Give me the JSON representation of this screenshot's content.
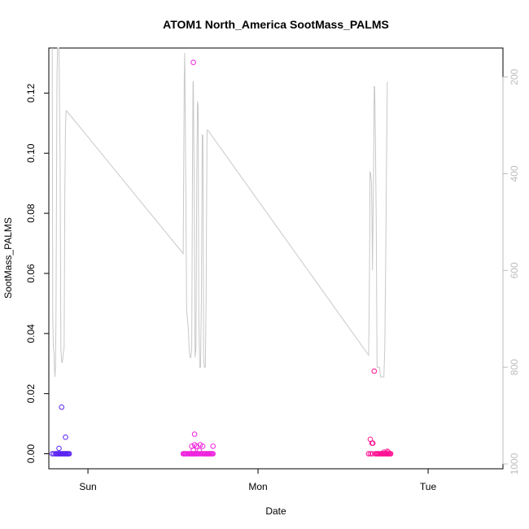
{
  "chart_data": {
    "type": "scatter",
    "title": "ATOM1 North_America SootMass_PALMS",
    "xlabel": "Date",
    "ylabel": "SootMass_PALMS",
    "xlim": [
      0.77,
      3.44
    ],
    "ylim": [
      -0.005,
      0.135
    ],
    "x_ticks": [
      {
        "value": 1,
        "label": "Sun"
      },
      {
        "value": 2,
        "label": "Mon"
      },
      {
        "value": 3,
        "label": "Tue"
      }
    ],
    "y_ticks": [
      0.0,
      0.02,
      0.04,
      0.06,
      0.08,
      0.1,
      0.12
    ],
    "y_tick_labels": [
      "0.00",
      "0.02",
      "0.04",
      "0.06",
      "0.08",
      "0.10",
      "0.12"
    ],
    "grid": false,
    "legend": "none",
    "secondary_axis": {
      "side": "right",
      "color": "#bdbdbd",
      "ylim": [
        1010,
        140
      ],
      "ticks": [
        200,
        400,
        600,
        800,
        1000
      ],
      "tick_labels": [
        "200",
        "400",
        "600",
        "800",
        "1000"
      ]
    },
    "scatter_series": [
      {
        "color": "#5b22f2",
        "points": [
          [
            0.8,
            0.0
          ],
          [
            0.81,
            0.0
          ],
          [
            0.815,
            0.0
          ],
          [
            0.82,
            0.0
          ],
          [
            0.825,
            0.0
          ],
          [
            0.83,
            0.0
          ],
          [
            0.835,
            0.0
          ],
          [
            0.84,
            0.0
          ],
          [
            0.845,
            0.0
          ],
          [
            0.85,
            0.0
          ],
          [
            0.855,
            0.0
          ],
          [
            0.86,
            0.0
          ],
          [
            0.865,
            0.0
          ],
          [
            0.87,
            0.0
          ],
          [
            0.875,
            0.0
          ],
          [
            0.88,
            0.0
          ],
          [
            0.885,
            0.0
          ],
          [
            0.89,
            0.0
          ],
          [
            0.79,
            0.0
          ],
          [
            0.83,
            0.0018
          ],
          [
            0.845,
            0.0155
          ],
          [
            0.868,
            0.0055
          ]
        ]
      },
      {
        "color": "#ee22dd",
        "points": [
          [
            1.56,
            0.0
          ],
          [
            1.565,
            0.0
          ],
          [
            1.57,
            0.0
          ],
          [
            1.575,
            0.0
          ],
          [
            1.58,
            0.0
          ],
          [
            1.59,
            0.0
          ],
          [
            1.595,
            0.0
          ],
          [
            1.6,
            0.0
          ],
          [
            1.605,
            0.0
          ],
          [
            1.61,
            0.0
          ],
          [
            1.615,
            0.0
          ],
          [
            1.62,
            0.0
          ],
          [
            1.625,
            0.0
          ],
          [
            1.63,
            0.0
          ],
          [
            1.635,
            0.0
          ],
          [
            1.64,
            0.0
          ],
          [
            1.645,
            0.0
          ],
          [
            1.65,
            0.0
          ],
          [
            1.66,
            0.0
          ],
          [
            1.67,
            0.0
          ],
          [
            1.675,
            0.0
          ],
          [
            1.68,
            0.0
          ],
          [
            1.685,
            0.0
          ],
          [
            1.69,
            0.0
          ],
          [
            1.695,
            0.0
          ],
          [
            1.7,
            0.0
          ],
          [
            1.705,
            0.0
          ],
          [
            1.71,
            0.0
          ],
          [
            1.715,
            0.0
          ],
          [
            1.72,
            0.0
          ],
          [
            1.725,
            0.0
          ],
          [
            1.73,
            0.0
          ],
          [
            1.735,
            0.0
          ],
          [
            1.61,
            0.0025
          ],
          [
            1.627,
            0.003
          ],
          [
            1.64,
            0.0025
          ],
          [
            1.66,
            0.003
          ],
          [
            1.675,
            0.0025
          ],
          [
            1.735,
            0.0025
          ],
          [
            1.62,
            0.0012
          ],
          [
            1.655,
            0.001
          ],
          [
            1.627,
            0.0065
          ],
          [
            1.62,
            0.1302
          ]
        ]
      },
      {
        "color": "#ff1493",
        "points": [
          [
            2.65,
            0.0
          ],
          [
            2.66,
            0.0
          ],
          [
            2.67,
            0.0
          ],
          [
            2.69,
            0.0
          ],
          [
            2.695,
            0.0
          ],
          [
            2.7,
            0.0
          ],
          [
            2.705,
            0.0
          ],
          [
            2.71,
            0.0
          ],
          [
            2.715,
            0.0
          ],
          [
            2.72,
            0.0
          ],
          [
            2.725,
            0.0
          ],
          [
            2.73,
            0.0
          ],
          [
            2.735,
            0.0
          ],
          [
            2.74,
            0.0
          ],
          [
            2.745,
            0.0
          ],
          [
            2.75,
            0.0
          ],
          [
            2.755,
            0.0
          ],
          [
            2.76,
            0.0
          ],
          [
            2.765,
            0.0
          ],
          [
            2.77,
            0.0
          ],
          [
            2.775,
            0.0
          ],
          [
            2.78,
            0.0
          ],
          [
            2.74,
            0.0005
          ],
          [
            2.76,
            0.0008
          ],
          [
            2.765,
            0.0005
          ],
          [
            2.66,
            0.0048
          ],
          [
            2.67,
            0.0035
          ],
          [
            2.675,
            0.0035
          ],
          [
            2.683,
            0.0275
          ]
        ]
      }
    ],
    "line_series": {
      "axis": "secondary",
      "color": "#c8c8c8",
      "points": [
        [
          0.79,
          140
        ],
        [
          0.793,
          700
        ],
        [
          0.797,
          760
        ],
        [
          0.8,
          770
        ],
        [
          0.803,
          800
        ],
        [
          0.806,
          820
        ],
        [
          0.809,
          800
        ],
        [
          0.812,
          700
        ],
        [
          0.815,
          450
        ],
        [
          0.818,
          200
        ],
        [
          0.821,
          140
        ],
        [
          0.83,
          140
        ],
        [
          0.836,
          360
        ],
        [
          0.841,
          760
        ],
        [
          0.845,
          790
        ],
        [
          0.85,
          790
        ],
        [
          0.855,
          770
        ],
        [
          0.86,
          760
        ],
        [
          0.864,
          450
        ],
        [
          0.868,
          300
        ],
        [
          0.872,
          270
        ],
        [
          0.875,
          270
        ],
        [
          1.56,
          565
        ],
        [
          1.563,
          400
        ],
        [
          1.566,
          200
        ],
        [
          1.569,
          150
        ],
        [
          1.575,
          400
        ],
        [
          1.58,
          680
        ],
        [
          1.585,
          700
        ],
        [
          1.59,
          720
        ],
        [
          1.595,
          760
        ],
        [
          1.6,
          780
        ],
        [
          1.605,
          780
        ],
        [
          1.61,
          760
        ],
        [
          1.615,
          360
        ],
        [
          1.618,
          210
        ],
        [
          1.62,
          210
        ],
        [
          1.625,
          450
        ],
        [
          1.63,
          780
        ],
        [
          1.635,
          760
        ],
        [
          1.64,
          400
        ],
        [
          1.644,
          250
        ],
        [
          1.648,
          260
        ],
        [
          1.652,
          700
        ],
        [
          1.657,
          800
        ],
        [
          1.662,
          800
        ],
        [
          1.667,
          650
        ],
        [
          1.672,
          320
        ],
        [
          1.676,
          320
        ],
        [
          1.68,
          780
        ],
        [
          1.685,
          800
        ],
        [
          1.69,
          800
        ],
        [
          1.695,
          650
        ],
        [
          1.7,
          310
        ],
        [
          1.705,
          310
        ],
        [
          2.65,
          775
        ],
        [
          2.653,
          700
        ],
        [
          2.656,
          560
        ],
        [
          2.658,
          395
        ],
        [
          2.662,
          400
        ],
        [
          2.667,
          420
        ],
        [
          2.67,
          500
        ],
        [
          2.673,
          600
        ],
        [
          2.676,
          500
        ],
        [
          2.68,
          360
        ],
        [
          2.683,
          220
        ],
        [
          2.686,
          220
        ],
        [
          2.69,
          330
        ],
        [
          2.695,
          500
        ],
        [
          2.7,
          800
        ],
        [
          2.705,
          800
        ],
        [
          2.71,
          800
        ],
        [
          2.715,
          800
        ],
        [
          2.72,
          820
        ],
        [
          2.73,
          820
        ],
        [
          2.74,
          820
        ],
        [
          2.745,
          760
        ],
        [
          2.75,
          600
        ],
        [
          2.755,
          400
        ],
        [
          2.76,
          210
        ]
      ]
    }
  }
}
